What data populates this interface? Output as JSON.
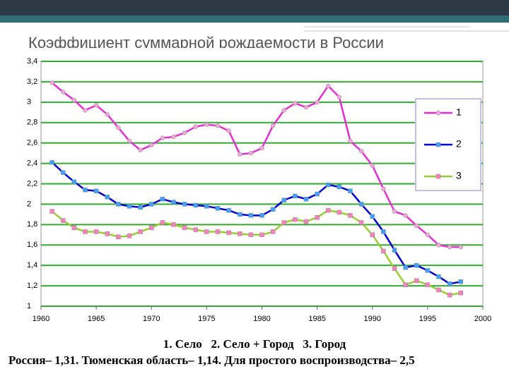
{
  "title": "Коэффициент суммарной рождаемости в России",
  "chart_data": {
    "type": "line",
    "x": [
      1961,
      1962,
      1963,
      1964,
      1965,
      1966,
      1967,
      1968,
      1969,
      1970,
      1971,
      1972,
      1973,
      1974,
      1975,
      1976,
      1977,
      1978,
      1979,
      1980,
      1981,
      1982,
      1983,
      1984,
      1985,
      1986,
      1987,
      1988,
      1989,
      1990,
      1991,
      1992,
      1993,
      1994,
      1995,
      1996,
      1997,
      1998
    ],
    "series": [
      {
        "name": "1",
        "color": "#e030d0",
        "marker_color": "#f0a8d8",
        "marker": "circle",
        "values": [
          3.19,
          3.1,
          3.02,
          2.92,
          2.97,
          2.88,
          2.75,
          2.62,
          2.53,
          2.58,
          2.65,
          2.66,
          2.7,
          2.76,
          2.78,
          2.77,
          2.72,
          2.49,
          2.5,
          2.55,
          2.77,
          2.92,
          2.99,
          2.95,
          3.0,
          3.16,
          3.05,
          2.62,
          2.52,
          2.38,
          2.15,
          1.93,
          1.89,
          1.79,
          1.7,
          1.6,
          1.58,
          1.58
        ]
      },
      {
        "name": "2",
        "color": "#0000cc",
        "marker_color": "#40a0ff",
        "marker": "square",
        "values": [
          2.41,
          2.31,
          2.22,
          2.14,
          2.13,
          2.07,
          2.0,
          1.98,
          1.97,
          2.0,
          2.05,
          2.02,
          2.0,
          1.99,
          1.98,
          1.96,
          1.94,
          1.9,
          1.89,
          1.89,
          1.95,
          2.04,
          2.08,
          2.05,
          2.1,
          2.19,
          2.17,
          2.13,
          2.0,
          1.88,
          1.73,
          1.55,
          1.38,
          1.4,
          1.35,
          1.29,
          1.22,
          1.24
        ]
      },
      {
        "name": "3",
        "color": "#99cc33",
        "marker_color": "#ff80c0",
        "marker": "square",
        "values": [
          1.93,
          1.84,
          1.77,
          1.73,
          1.73,
          1.71,
          1.68,
          1.69,
          1.73,
          1.77,
          1.82,
          1.8,
          1.77,
          1.75,
          1.73,
          1.73,
          1.72,
          1.71,
          1.7,
          1.7,
          1.73,
          1.82,
          1.85,
          1.83,
          1.87,
          1.94,
          1.92,
          1.89,
          1.82,
          1.7,
          1.54,
          1.37,
          1.21,
          1.25,
          1.21,
          1.16,
          1.11,
          1.13
        ]
      }
    ],
    "xlim": [
      1960,
      2000
    ],
    "xticks": [
      1960,
      1965,
      1970,
      1975,
      1980,
      1985,
      1990,
      1995,
      2000
    ],
    "ylim": [
      1,
      3.4
    ],
    "yticks": [
      1,
      {
        "value": 1.2,
        "label": "1,2"
      },
      {
        "value": 1.4,
        "label": "1,4"
      },
      {
        "value": 1.6,
        "label": "1,6"
      },
      {
        "value": 1.8,
        "label": "1,8"
      },
      2,
      {
        "value": 2.2,
        "label": "2,2"
      },
      {
        "value": 2.4,
        "label": "2,4"
      },
      {
        "value": 2.6,
        "label": "2,6"
      },
      {
        "value": 2.8,
        "label": "2,8"
      },
      3,
      {
        "value": 3.2,
        "label": "3,2"
      },
      {
        "value": 3.4,
        "label": "3,4"
      }
    ],
    "grid": true,
    "grid_color": "#33aa33",
    "legend": "right"
  },
  "caption": "1. Село   2. Село + Город   3. Город",
  "note": "Россия– 1,31. Тюменская область– 1,14. Для простого воспроизводства– 2,5"
}
